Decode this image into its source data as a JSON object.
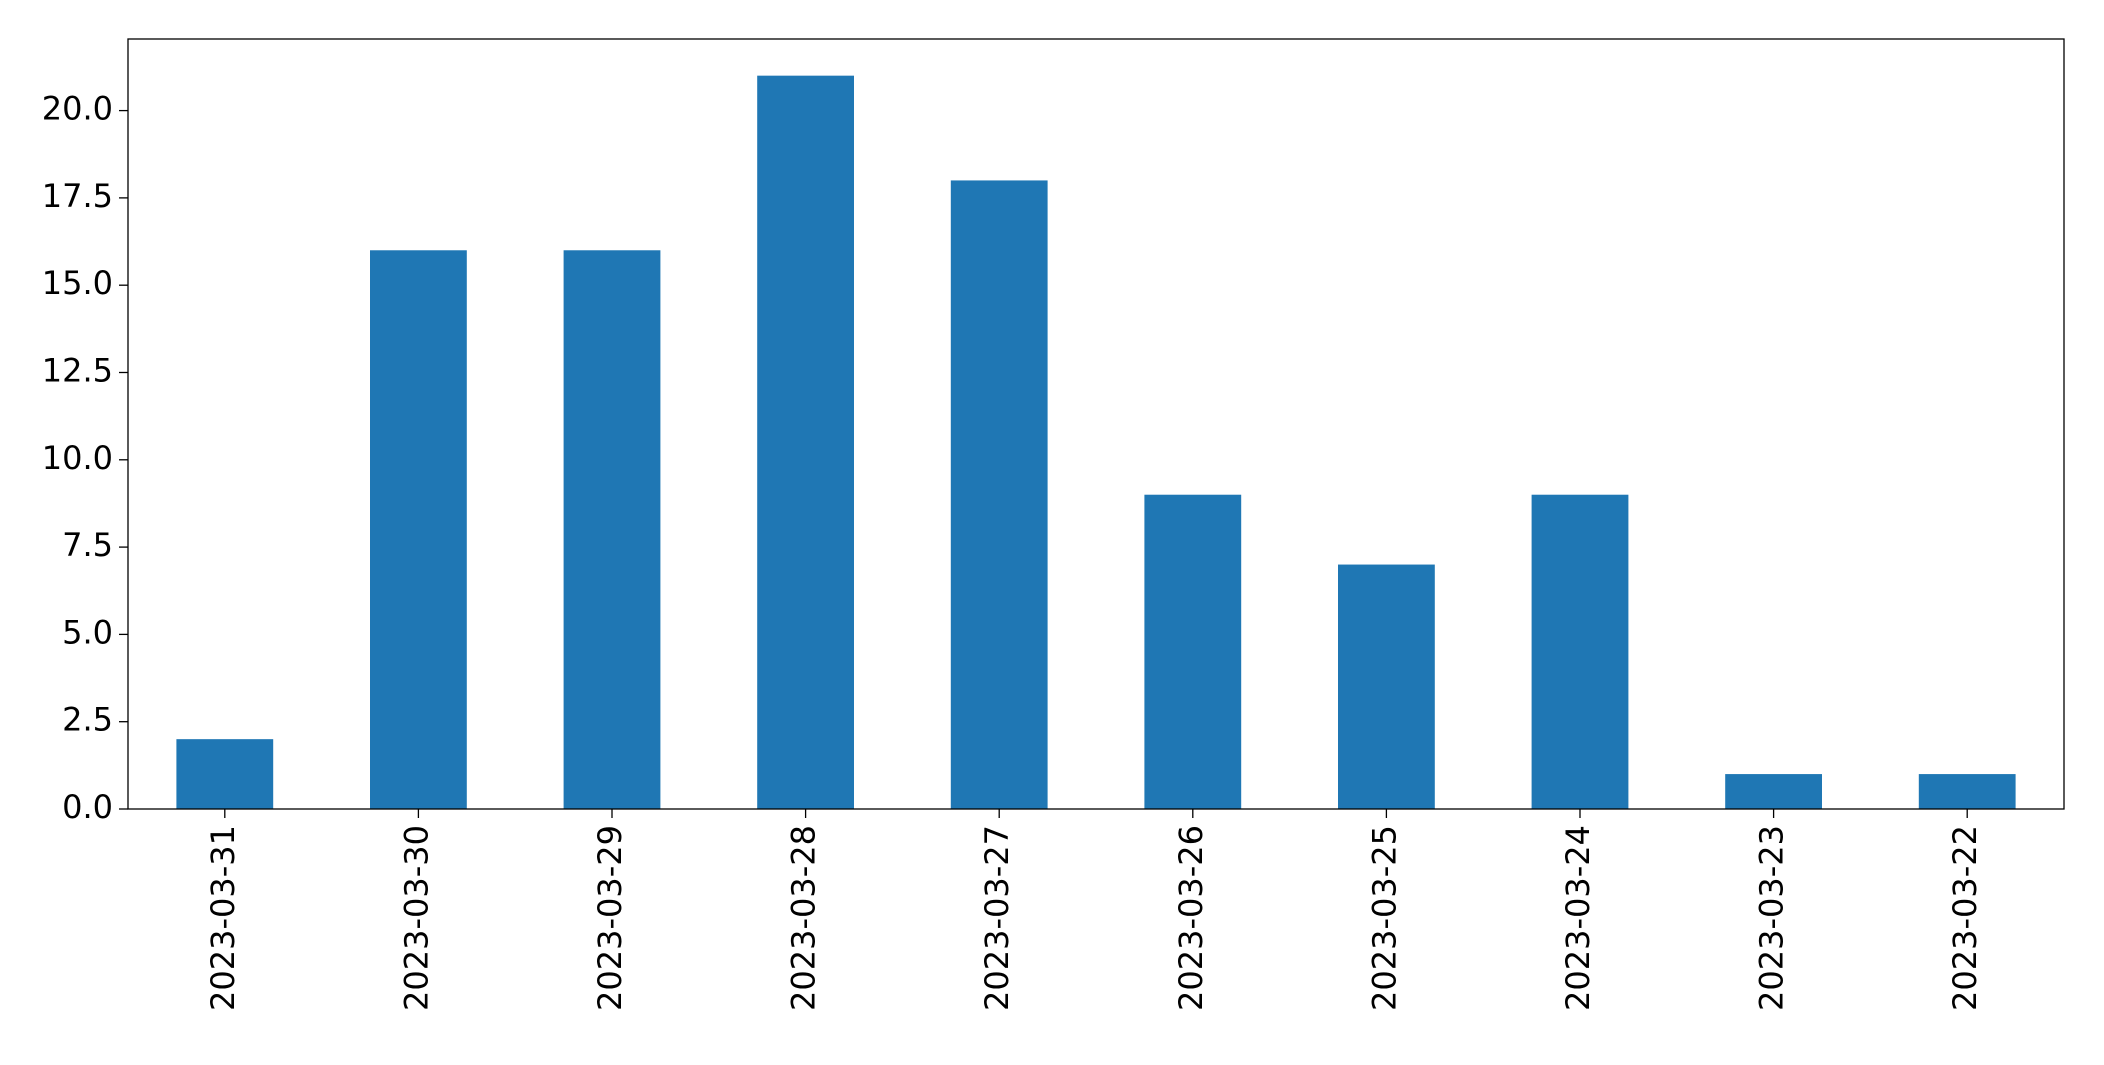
{
  "chart_data": {
    "type": "bar",
    "categories": [
      "2023-03-31",
      "2023-03-30",
      "2023-03-29",
      "2023-03-28",
      "2023-03-27",
      "2023-03-26",
      "2023-03-25",
      "2023-03-24",
      "2023-03-23",
      "2023-03-22"
    ],
    "values": [
      2,
      16,
      16,
      21,
      18,
      9,
      7,
      9,
      1,
      1
    ],
    "color": "#1f77b4",
    "ylim": [
      0,
      22.05
    ],
    "yticks": [
      {
        "value": 0,
        "label": "0.0"
      },
      2.5,
      {
        "value": 5,
        "label": "5.0"
      },
      7.5,
      {
        "value": 10,
        "label": "10.0"
      },
      12.5,
      {
        "value": 15,
        "label": "15.0"
      },
      17.5,
      {
        "value": 20,
        "label": "20.0"
      }
    ],
    "grid": false
  }
}
